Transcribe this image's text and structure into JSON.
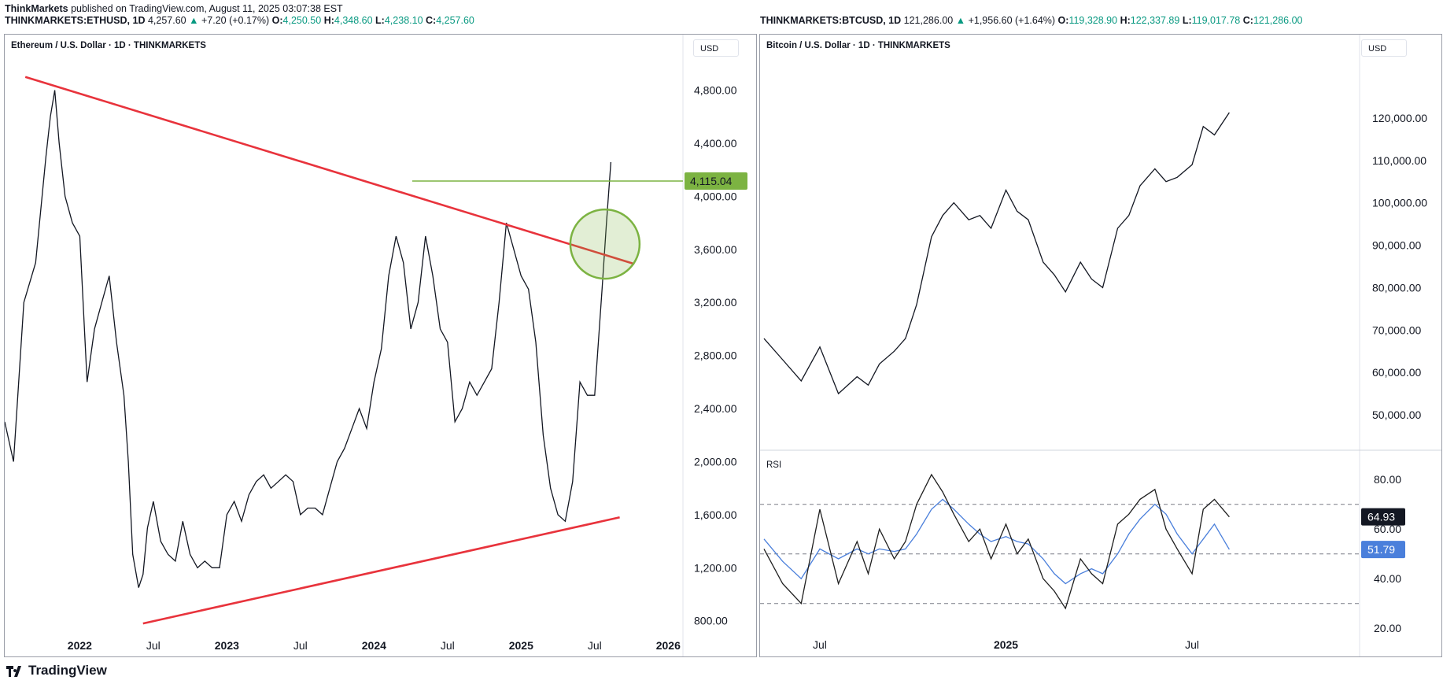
{
  "header": {
    "publisher": "ThinkMarkets",
    "published_text": "published on TradingView.com, August 11, 2025 03:07:38 EST",
    "left_symbol": "THINKMARKETS:ETHUSD, 1D",
    "left_last": "4,257.60",
    "left_change": "+7.20 (+0.17%)",
    "left_o": "4,250.50",
    "left_h": "4,348.60",
    "left_l": "4,238.10",
    "left_c": "4,257.60",
    "right_symbol": "THINKMARKETS:BTCUSD, 1D",
    "right_last": "121,286.00",
    "right_change": "+1,956.60 (+1.64%)",
    "right_o": "119,328.90",
    "right_h": "122,337.89",
    "right_l": "119,017.78",
    "right_c": "121,286.00",
    "o_label": "O:",
    "h_label": "H:",
    "l_label": "L:",
    "c_label": "C:",
    "up_arrow": "▲"
  },
  "left_panel": {
    "title": "Ethereum / U.S. Dollar · 1D · THINKMARKETS",
    "currency": "USD"
  },
  "right_panel": {
    "title": "Bitcoin / U.S. Dollar · 1D · THINKMARKETS",
    "currency": "USD",
    "rsi_label": "RSI"
  },
  "footer": {
    "brand": "TradingView"
  },
  "colors": {
    "up": "#089981",
    "trendline": "#e8333c",
    "level": "#7cb342",
    "rsi": "#1e1e1e",
    "rsi_ma": "#4a7fdb"
  },
  "chart_data": [
    {
      "type": "line",
      "title": "Ethereum / U.S. Dollar · 1D · THINKMARKETS",
      "x_ticks": [
        "2022",
        "Jul",
        "2023",
        "Jul",
        "2024",
        "Jul",
        "2025",
        "Jul",
        "2026"
      ],
      "y_ticks": [
        "800.00",
        "1,200.00",
        "1,600.00",
        "2,000.00",
        "2,400.00",
        "2,800.00",
        "3,200.00",
        "3,600.00",
        "4,000.00",
        "4,400.00",
        "4,800.00"
      ],
      "ylim": [
        650,
        5100
      ],
      "x_start": 2021.49,
      "x_end": 2026.1,
      "series": [
        {
          "x": [
            2021.49,
            2021.55,
            2021.62,
            2021.7,
            2021.77,
            2021.8,
            2021.83,
            2021.86,
            2021.9,
            2021.95,
            2022.0,
            2022.05,
            2022.1,
            2022.15,
            2022.2,
            2022.25,
            2022.3,
            2022.33,
            2022.36,
            2022.4,
            2022.43,
            2022.46,
            2022.5,
            2022.55,
            2022.6,
            2022.65,
            2022.7,
            2022.75,
            2022.8,
            2022.85,
            2022.9,
            2022.95,
            2023.0,
            2023.05,
            2023.1,
            2023.15,
            2023.2,
            2023.25,
            2023.3,
            2023.35,
            2023.4,
            2023.45,
            2023.5,
            2023.55,
            2023.6,
            2023.65,
            2023.7,
            2023.75,
            2023.8,
            2023.85,
            2023.9,
            2023.95,
            2024.0,
            2024.05,
            2024.1,
            2024.15,
            2024.2,
            2024.25,
            2024.3,
            2024.35,
            2024.4,
            2024.45,
            2024.5,
            2024.55,
            2024.6,
            2024.65,
            2024.7,
            2024.75,
            2024.8,
            2024.85,
            2024.9,
            2024.95,
            2025.0,
            2025.05,
            2025.1,
            2025.15,
            2025.2,
            2025.25,
            2025.3,
            2025.35,
            2025.4,
            2025.45,
            2025.5,
            2025.55,
            2025.58,
            2025.61
          ],
          "values": [
            2300,
            2000,
            3200,
            3500,
            4300,
            4600,
            4800,
            4400,
            4000,
            3800,
            3700,
            2600,
            3000,
            3200,
            3400,
            2900,
            2500,
            2000,
            1300,
            1050,
            1150,
            1500,
            1700,
            1400,
            1300,
            1250,
            1550,
            1300,
            1200,
            1250,
            1200,
            1200,
            1600,
            1700,
            1550,
            1750,
            1850,
            1900,
            1800,
            1850,
            1900,
            1850,
            1600,
            1650,
            1650,
            1600,
            1800,
            2000,
            2100,
            2250,
            2400,
            2250,
            2600,
            2850,
            3400,
            3700,
            3500,
            3000,
            3200,
            3700,
            3400,
            3000,
            2900,
            2300,
            2400,
            2600,
            2500,
            2600,
            2700,
            3200,
            3800,
            3600,
            3400,
            3300,
            2900,
            2200,
            1800,
            1600,
            1550,
            1850,
            2600,
            2500,
            2500,
            3300,
            3800,
            4258
          ]
        }
      ],
      "lines": [
        {
          "name": "Descending resistance",
          "from": [
            2021.63,
            4900
          ],
          "to": [
            2025.77,
            3490
          ]
        },
        {
          "name": "Ascending support",
          "from": [
            2022.43,
            780
          ],
          "to": [
            2025.67,
            1580
          ]
        },
        {
          "name": "Horizontal level",
          "from": [
            2024.26,
            4115.04
          ],
          "to": [
            2026.1,
            4115.04
          ]
        }
      ],
      "marked_level": "4,115.04",
      "circle_center": [
        2025.57,
        3640
      ]
    },
    {
      "type": "line",
      "title": "Bitcoin / U.S. Dollar · 1D · THINKMARKETS",
      "x_ticks": [
        "Jul",
        "2025",
        "Jul"
      ],
      "y_ticks": [
        "50,000.00",
        "60,000.00",
        "70,000.00",
        "80,000.00",
        "90,000.00",
        "100,000.00",
        "110,000.00",
        "120,000.00"
      ],
      "ylim": [
        45000,
        130000
      ],
      "x_start": 2024.35,
      "x_end": 2025.95,
      "series": [
        {
          "x": [
            2024.35,
            2024.4,
            2024.45,
            2024.5,
            2024.55,
            2024.6,
            2024.63,
            2024.66,
            2024.7,
            2024.73,
            2024.76,
            2024.8,
            2024.83,
            2024.86,
            2024.9,
            2024.93,
            2024.96,
            2025.0,
            2025.03,
            2025.06,
            2025.1,
            2025.13,
            2025.16,
            2025.2,
            2025.23,
            2025.26,
            2025.3,
            2025.33,
            2025.36,
            2025.4,
            2025.43,
            2025.46,
            2025.5,
            2025.53,
            2025.56,
            2025.6
          ],
          "values": [
            68000,
            63000,
            58000,
            66000,
            55000,
            59000,
            57000,
            62000,
            65000,
            68000,
            76000,
            92000,
            97000,
            100000,
            96000,
            97000,
            94000,
            103000,
            98000,
            96000,
            86000,
            83000,
            79000,
            86000,
            82000,
            80000,
            94000,
            97000,
            104000,
            108000,
            105000,
            106000,
            109000,
            118000,
            116000,
            121286
          ]
        }
      ]
    },
    {
      "type": "line",
      "title": "RSI",
      "y_ticks": [
        "20.00",
        "40.00",
        "60.00",
        "80.00"
      ],
      "ylim": [
        15,
        88
      ],
      "bands": [
        70,
        50,
        30
      ],
      "last_rsi": "64.93",
      "last_ma": "51.79",
      "x_start": 2024.35,
      "x_end": 2025.95,
      "series": [
        {
          "name": "RSI",
          "x": [
            2024.35,
            2024.4,
            2024.45,
            2024.5,
            2024.55,
            2024.6,
            2024.63,
            2024.66,
            2024.7,
            2024.73,
            2024.76,
            2024.8,
            2024.83,
            2024.86,
            2024.9,
            2024.93,
            2024.96,
            2025.0,
            2025.03,
            2025.06,
            2025.1,
            2025.13,
            2025.16,
            2025.2,
            2025.23,
            2025.26,
            2025.3,
            2025.33,
            2025.36,
            2025.4,
            2025.43,
            2025.46,
            2025.5,
            2025.53,
            2025.56,
            2025.6
          ],
          "values": [
            52,
            38,
            30,
            68,
            38,
            55,
            42,
            60,
            48,
            55,
            70,
            82,
            75,
            66,
            55,
            60,
            48,
            62,
            50,
            56,
            40,
            35,
            28,
            48,
            42,
            38,
            62,
            66,
            72,
            76,
            60,
            52,
            42,
            68,
            72,
            64.93
          ]
        },
        {
          "name": "RSI-based MA",
          "x": [
            2024.35,
            2024.4,
            2024.45,
            2024.5,
            2024.55,
            2024.6,
            2024.63,
            2024.66,
            2024.7,
            2024.73,
            2024.76,
            2024.8,
            2024.83,
            2024.86,
            2024.9,
            2024.93,
            2024.96,
            2025.0,
            2025.03,
            2025.06,
            2025.1,
            2025.13,
            2025.16,
            2025.2,
            2025.23,
            2025.26,
            2025.3,
            2025.33,
            2025.36,
            2025.4,
            2025.43,
            2025.46,
            2025.5,
            2025.53,
            2025.56,
            2025.6
          ],
          "values": [
            56,
            47,
            40,
            52,
            48,
            52,
            50,
            52,
            51,
            52,
            58,
            68,
            72,
            68,
            62,
            58,
            55,
            57,
            55,
            54,
            48,
            42,
            38,
            42,
            44,
            42,
            50,
            58,
            64,
            70,
            66,
            58,
            50,
            56,
            62,
            51.79
          ]
        }
      ]
    }
  ]
}
